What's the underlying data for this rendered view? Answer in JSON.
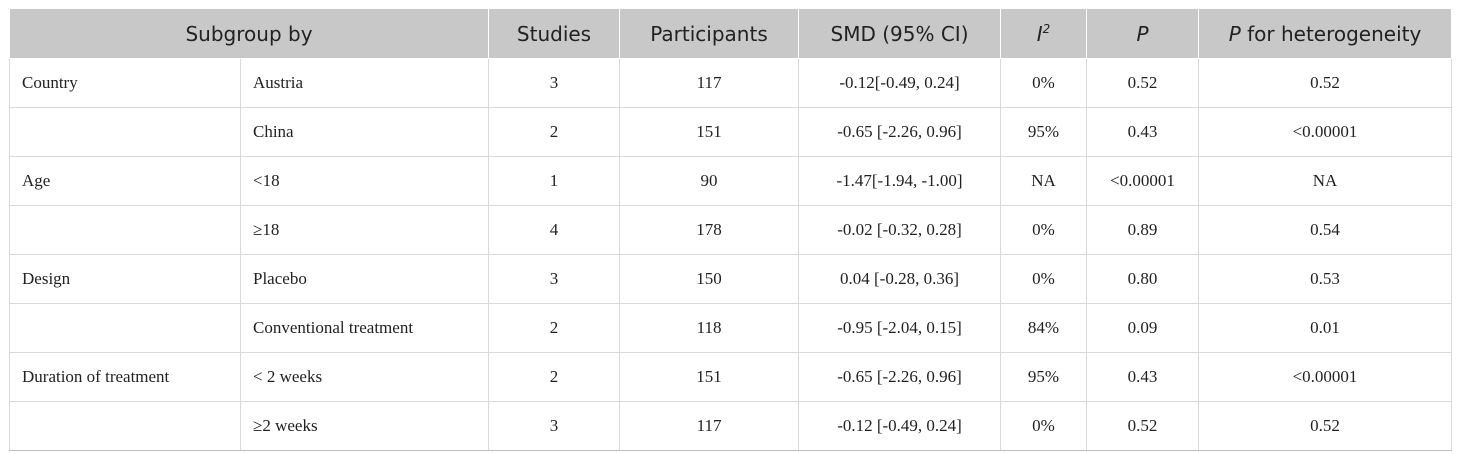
{
  "header": {
    "subgroup_by": "Subgroup by",
    "studies": "Studies",
    "participants": "Participants",
    "smd": "SMD (95% CI)",
    "i2_base": "I",
    "i2_sup": "2",
    "p": "P",
    "p_het_italic": "P",
    "p_het_rest": " for heterogeneity"
  },
  "rows": [
    {
      "group": "Country",
      "subgroup": "Austria",
      "studies": "3",
      "participants": "117",
      "smd": "-0.12[-0.49, 0.24]",
      "i2": "0%",
      "p": "0.52",
      "p_het": "0.52"
    },
    {
      "group": "",
      "subgroup": "China",
      "studies": "2",
      "participants": "151",
      "smd": "-0.65 [-2.26, 0.96]",
      "i2": "95%",
      "p": "0.43",
      "p_het": "<0.00001"
    },
    {
      "group": "Age",
      "subgroup": "<18",
      "studies": "1",
      "participants": "90",
      "smd": "-1.47[-1.94, -1.00]",
      "i2": "NA",
      "p": "<0.00001",
      "p_het": "NA"
    },
    {
      "group": "",
      "subgroup": "≥18",
      "studies": "4",
      "participants": "178",
      "smd": "-0.02 [-0.32, 0.28]",
      "i2": "0%",
      "p": "0.89",
      "p_het": "0.54"
    },
    {
      "group": "Design",
      "subgroup": "Placebo",
      "studies": "3",
      "participants": "150",
      "smd": "0.04 [-0.28, 0.36]",
      "i2": "0%",
      "p": "0.80",
      "p_het": "0.53"
    },
    {
      "group": "",
      "subgroup": "Conventional treatment",
      "studies": "2",
      "participants": "118",
      "smd": "-0.95 [-2.04, 0.15]",
      "i2": "84%",
      "p": "0.09",
      "p_het": "0.01"
    },
    {
      "group": "Duration of treatment",
      "subgroup": "< 2 weeks",
      "studies": "2",
      "participants": "151",
      "smd": "-0.65 [-2.26, 0.96]",
      "i2": "95%",
      "p": "0.43",
      "p_het": "<0.00001"
    },
    {
      "group": "",
      "subgroup": "≥2 weeks",
      "studies": "3",
      "participants": "117",
      "smd": "-0.12 [-0.49, 0.24]",
      "i2": "0%",
      "p": "0.52",
      "p_het": "0.52"
    }
  ]
}
